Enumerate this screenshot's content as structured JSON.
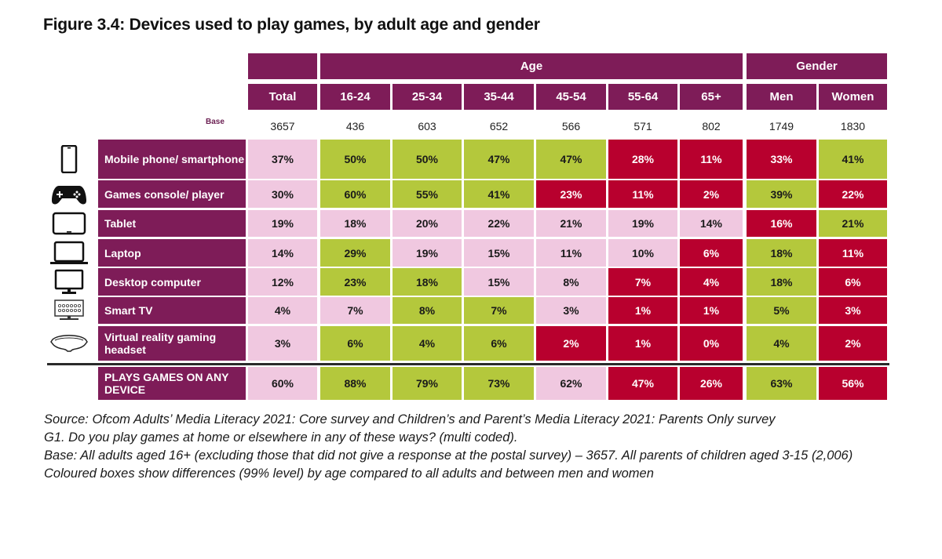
{
  "title": "Figure 3.4: Devices used to play games, by adult age and gender",
  "group_headers": {
    "age": "Age",
    "gender": "Gender"
  },
  "columns": [
    "Total",
    "16-24",
    "25-34",
    "35-44",
    "45-54",
    "55-64",
    "65+",
    "Men",
    "Women"
  ],
  "base_label": "Base",
  "base": [
    "3657",
    "436",
    "603",
    "652",
    "566",
    "571",
    "802",
    "1749",
    "1830"
  ],
  "colors": {
    "header": "#7e1c58",
    "neutral": "#f0c8e0",
    "higher": "#b4c83c",
    "lower": "#b8002e"
  },
  "rows": [
    {
      "label": "Mobile phone/ smartphone",
      "icon": "smartphone-icon",
      "values": [
        "37%",
        "50%",
        "50%",
        "47%",
        "47%",
        "28%",
        "11%",
        "33%",
        "41%"
      ],
      "status": [
        "n",
        "g",
        "g",
        "g",
        "g",
        "r",
        "r",
        "r",
        "g"
      ]
    },
    {
      "label": "Games console/ player",
      "icon": "gamepad-icon",
      "values": [
        "30%",
        "60%",
        "55%",
        "41%",
        "23%",
        "11%",
        "2%",
        "39%",
        "22%"
      ],
      "status": [
        "n",
        "g",
        "g",
        "g",
        "r",
        "r",
        "r",
        "g",
        "r"
      ]
    },
    {
      "label": "Tablet",
      "icon": "tablet-icon",
      "values": [
        "19%",
        "18%",
        "20%",
        "22%",
        "21%",
        "19%",
        "14%",
        "16%",
        "21%"
      ],
      "status": [
        "n",
        "n",
        "n",
        "n",
        "n",
        "n",
        "n",
        "r",
        "g"
      ]
    },
    {
      "label": "Laptop",
      "icon": "laptop-icon",
      "values": [
        "14%",
        "29%",
        "19%",
        "15%",
        "11%",
        "10%",
        "6%",
        "18%",
        "11%"
      ],
      "status": [
        "n",
        "g",
        "n",
        "n",
        "n",
        "n",
        "r",
        "g",
        "r"
      ]
    },
    {
      "label": "Desktop computer",
      "icon": "desktop-icon",
      "values": [
        "12%",
        "23%",
        "18%",
        "15%",
        "8%",
        "7%",
        "4%",
        "18%",
        "6%"
      ],
      "status": [
        "n",
        "g",
        "g",
        "n",
        "n",
        "r",
        "r",
        "g",
        "r"
      ]
    },
    {
      "label": "Smart TV",
      "icon": "smart-tv-icon",
      "values": [
        "4%",
        "7%",
        "8%",
        "7%",
        "3%",
        "1%",
        "1%",
        "5%",
        "3%"
      ],
      "status": [
        "n",
        "n",
        "g",
        "g",
        "n",
        "r",
        "r",
        "g",
        "r"
      ]
    },
    {
      "label": "Virtual reality gaming headset",
      "icon": "vr-headset-icon",
      "values": [
        "3%",
        "6%",
        "4%",
        "6%",
        "2%",
        "1%",
        "0%",
        "4%",
        "2%"
      ],
      "status": [
        "n",
        "g",
        "g",
        "g",
        "r",
        "r",
        "r",
        "g",
        "r"
      ]
    },
    {
      "label": "PLAYS GAMES ON ANY DEVICE",
      "icon": "",
      "values": [
        "60%",
        "88%",
        "79%",
        "73%",
        "62%",
        "47%",
        "26%",
        "63%",
        "56%"
      ],
      "status": [
        "n",
        "g",
        "g",
        "g",
        "n",
        "r",
        "r",
        "g",
        "r"
      ]
    }
  ],
  "notes": [
    "Source: Ofcom Adults’ Media Literacy 2021: Core survey and Children’s and Parent’s Media Literacy 2021: Parents Only survey",
    "G1. Do you play games at home or elsewhere in any of these ways? (multi coded).",
    "Base: All adults aged 16+ (excluding those that did not give a response at the postal survey) – 3657. All parents of children aged 3-15 (2,006)",
    "Coloured boxes show differences (99% level) by age compared to all adults and between men and women"
  ]
}
